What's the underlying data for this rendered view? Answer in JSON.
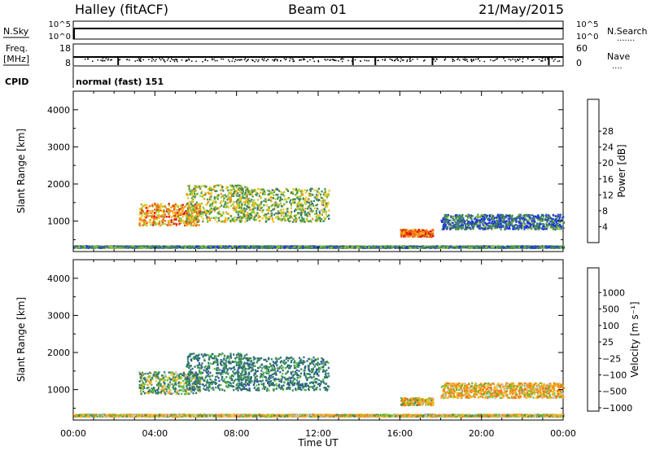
{
  "header": {
    "station": "Halley (fitACF)",
    "beam": "Beam 01",
    "date": "21/May/2015"
  },
  "strips": {
    "nsky": {
      "label": "N.Sky",
      "tick_top": "10^5",
      "tick_bottom": "10^0",
      "right_tick_top": "10^5",
      "right_tick_bottom": "10^0",
      "right_label": "N.Search",
      "right_key": "......."
    },
    "freq": {
      "label_line1": "Freq.",
      "label_line2": "[MHz]",
      "tick_top": "18",
      "tick_bottom": "8",
      "right_tick_top": "60",
      "right_tick_bottom": "0",
      "right_label": "Nave",
      "right_key": "...."
    },
    "cpid": {
      "label": "CPID",
      "value": "normal (fast) 151"
    }
  },
  "axes": {
    "x_label": "Time UT",
    "x_ticks": [
      "00:00",
      "04:00",
      "08:00",
      "12:00",
      "16:00",
      "20:00",
      "00:00"
    ],
    "y_label": "Slant Range [km]",
    "y_ticks": [
      "1000",
      "2000",
      "3000",
      "4000"
    ]
  },
  "colorbars": {
    "power": {
      "label": "Power [dB]",
      "ticks": [
        "4",
        "8",
        "12",
        "16",
        "20",
        "24",
        "28"
      ],
      "colors": [
        "#1a2cf0",
        "#2d4fa8",
        "#3f7f6a",
        "#4a9a45",
        "#9ac832",
        "#f2c21e",
        "#f4961a",
        "#ec5a14",
        "#e01010"
      ]
    },
    "velocity": {
      "label": "Velocity [m s⁻¹]",
      "ticks": [
        "1000",
        "500",
        "100",
        "25",
        "−25",
        "−100",
        "−500",
        "−1000"
      ],
      "colors": [
        "#1a2cf0",
        "#2d4fa8",
        "#2f6e7a",
        "#3d8a5c",
        "#5cc23a",
        "#c8c8c8",
        "#f4c21e",
        "#f4a21a",
        "#f07814",
        "#e03c10",
        "#e01010"
      ]
    }
  },
  "chart_data": [
    {
      "type": "heatmap",
      "title": "Power [dB]",
      "xlabel": "Time UT",
      "ylabel": "Slant Range [km]",
      "xlim": [
        "00:00",
        "24:00"
      ],
      "ylim": [
        180,
        4500
      ],
      "clim": [
        0,
        30
      ],
      "regions": [
        {
          "t_start": 3.2,
          "t_end": 6.2,
          "range_lo": 900,
          "range_hi": 1500,
          "value": 20
        },
        {
          "t_start": 5.5,
          "t_end": 8.6,
          "range_lo": 1000,
          "range_hi": 2000,
          "value": 14
        },
        {
          "t_start": 8.0,
          "t_end": 12.5,
          "range_lo": 1000,
          "range_hi": 1900,
          "value": 12
        },
        {
          "t_start": 16.0,
          "t_end": 17.6,
          "range_lo": 600,
          "range_hi": 800,
          "value": 22
        },
        {
          "t_start": 0.0,
          "t_end": 24.0,
          "range_lo": 300,
          "range_hi": 350,
          "value": 8
        },
        {
          "t_start": 18.0,
          "t_end": 24.0,
          "range_lo": 800,
          "range_hi": 1200,
          "value": 6
        }
      ]
    },
    {
      "type": "heatmap",
      "title": "Velocity [m s⁻¹]",
      "xlabel": "Time UT",
      "ylabel": "Slant Range [km]",
      "xlim": [
        "00:00",
        "24:00"
      ],
      "ylim": [
        180,
        4500
      ],
      "clim": [
        -1000,
        1000
      ],
      "regions": [
        {
          "t_start": 3.2,
          "t_end": 6.2,
          "range_lo": 900,
          "range_hi": 1500,
          "value": 100
        },
        {
          "t_start": 5.5,
          "t_end": 8.6,
          "range_lo": 1000,
          "range_hi": 2000,
          "value": 300
        },
        {
          "t_start": 8.0,
          "t_end": 12.5,
          "range_lo": 1000,
          "range_hi": 1900,
          "value": 300
        },
        {
          "t_start": 16.0,
          "t_end": 17.6,
          "range_lo": 600,
          "range_hi": 800,
          "value": -80
        },
        {
          "t_start": 0.0,
          "t_end": 24.0,
          "range_lo": 300,
          "range_hi": 350,
          "value": -60
        },
        {
          "t_start": 18.0,
          "t_end": 24.0,
          "range_lo": 800,
          "range_hi": 1200,
          "value": -150
        }
      ]
    }
  ]
}
